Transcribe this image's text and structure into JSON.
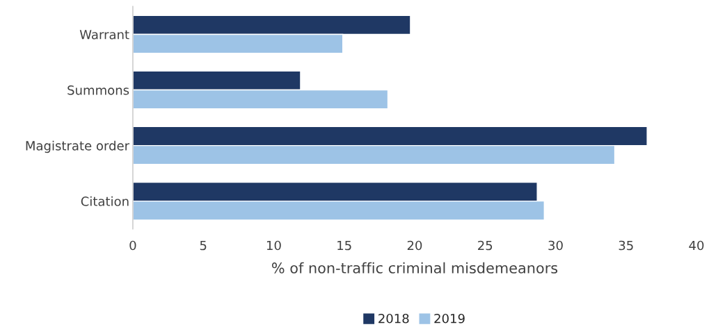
{
  "chart_data": {
    "type": "bar",
    "orientation": "horizontal",
    "xlabel": "% of non-traffic criminal misdemeanors",
    "categories": [
      "Warrant",
      "Summons",
      "Magistrate order",
      "Citation"
    ],
    "series": [
      {
        "name": "2018",
        "color": "#1f3864",
        "values": [
          19.7,
          11.9,
          36.5,
          28.7
        ]
      },
      {
        "name": "2019",
        "color": "#9dc3e6",
        "values": [
          14.9,
          18.1,
          34.2,
          29.2
        ]
      }
    ],
    "xlim": [
      0,
      40
    ],
    "xticks": [
      0,
      5,
      10,
      15,
      20,
      25,
      30,
      35,
      40
    ],
    "grid": false,
    "legend": "bottom"
  }
}
